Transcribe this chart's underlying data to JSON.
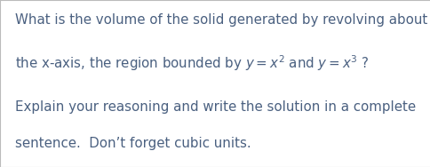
{
  "background_color": "#ffffff",
  "border_color": "#bbbbbb",
  "figsize": [
    4.85,
    1.88
  ],
  "dpi": 100,
  "text_color": "#4a6080",
  "font_size": 10.8,
  "line1": "What is the volume of the solid generated by revolving about",
  "line2": "the x-axis, the region bounded by $y = x^2$ and $y = x^3$ ?",
  "line3": "Explain your reasoning and write the solution in a complete",
  "line4": "sentence.  Don’t forget cubic units."
}
